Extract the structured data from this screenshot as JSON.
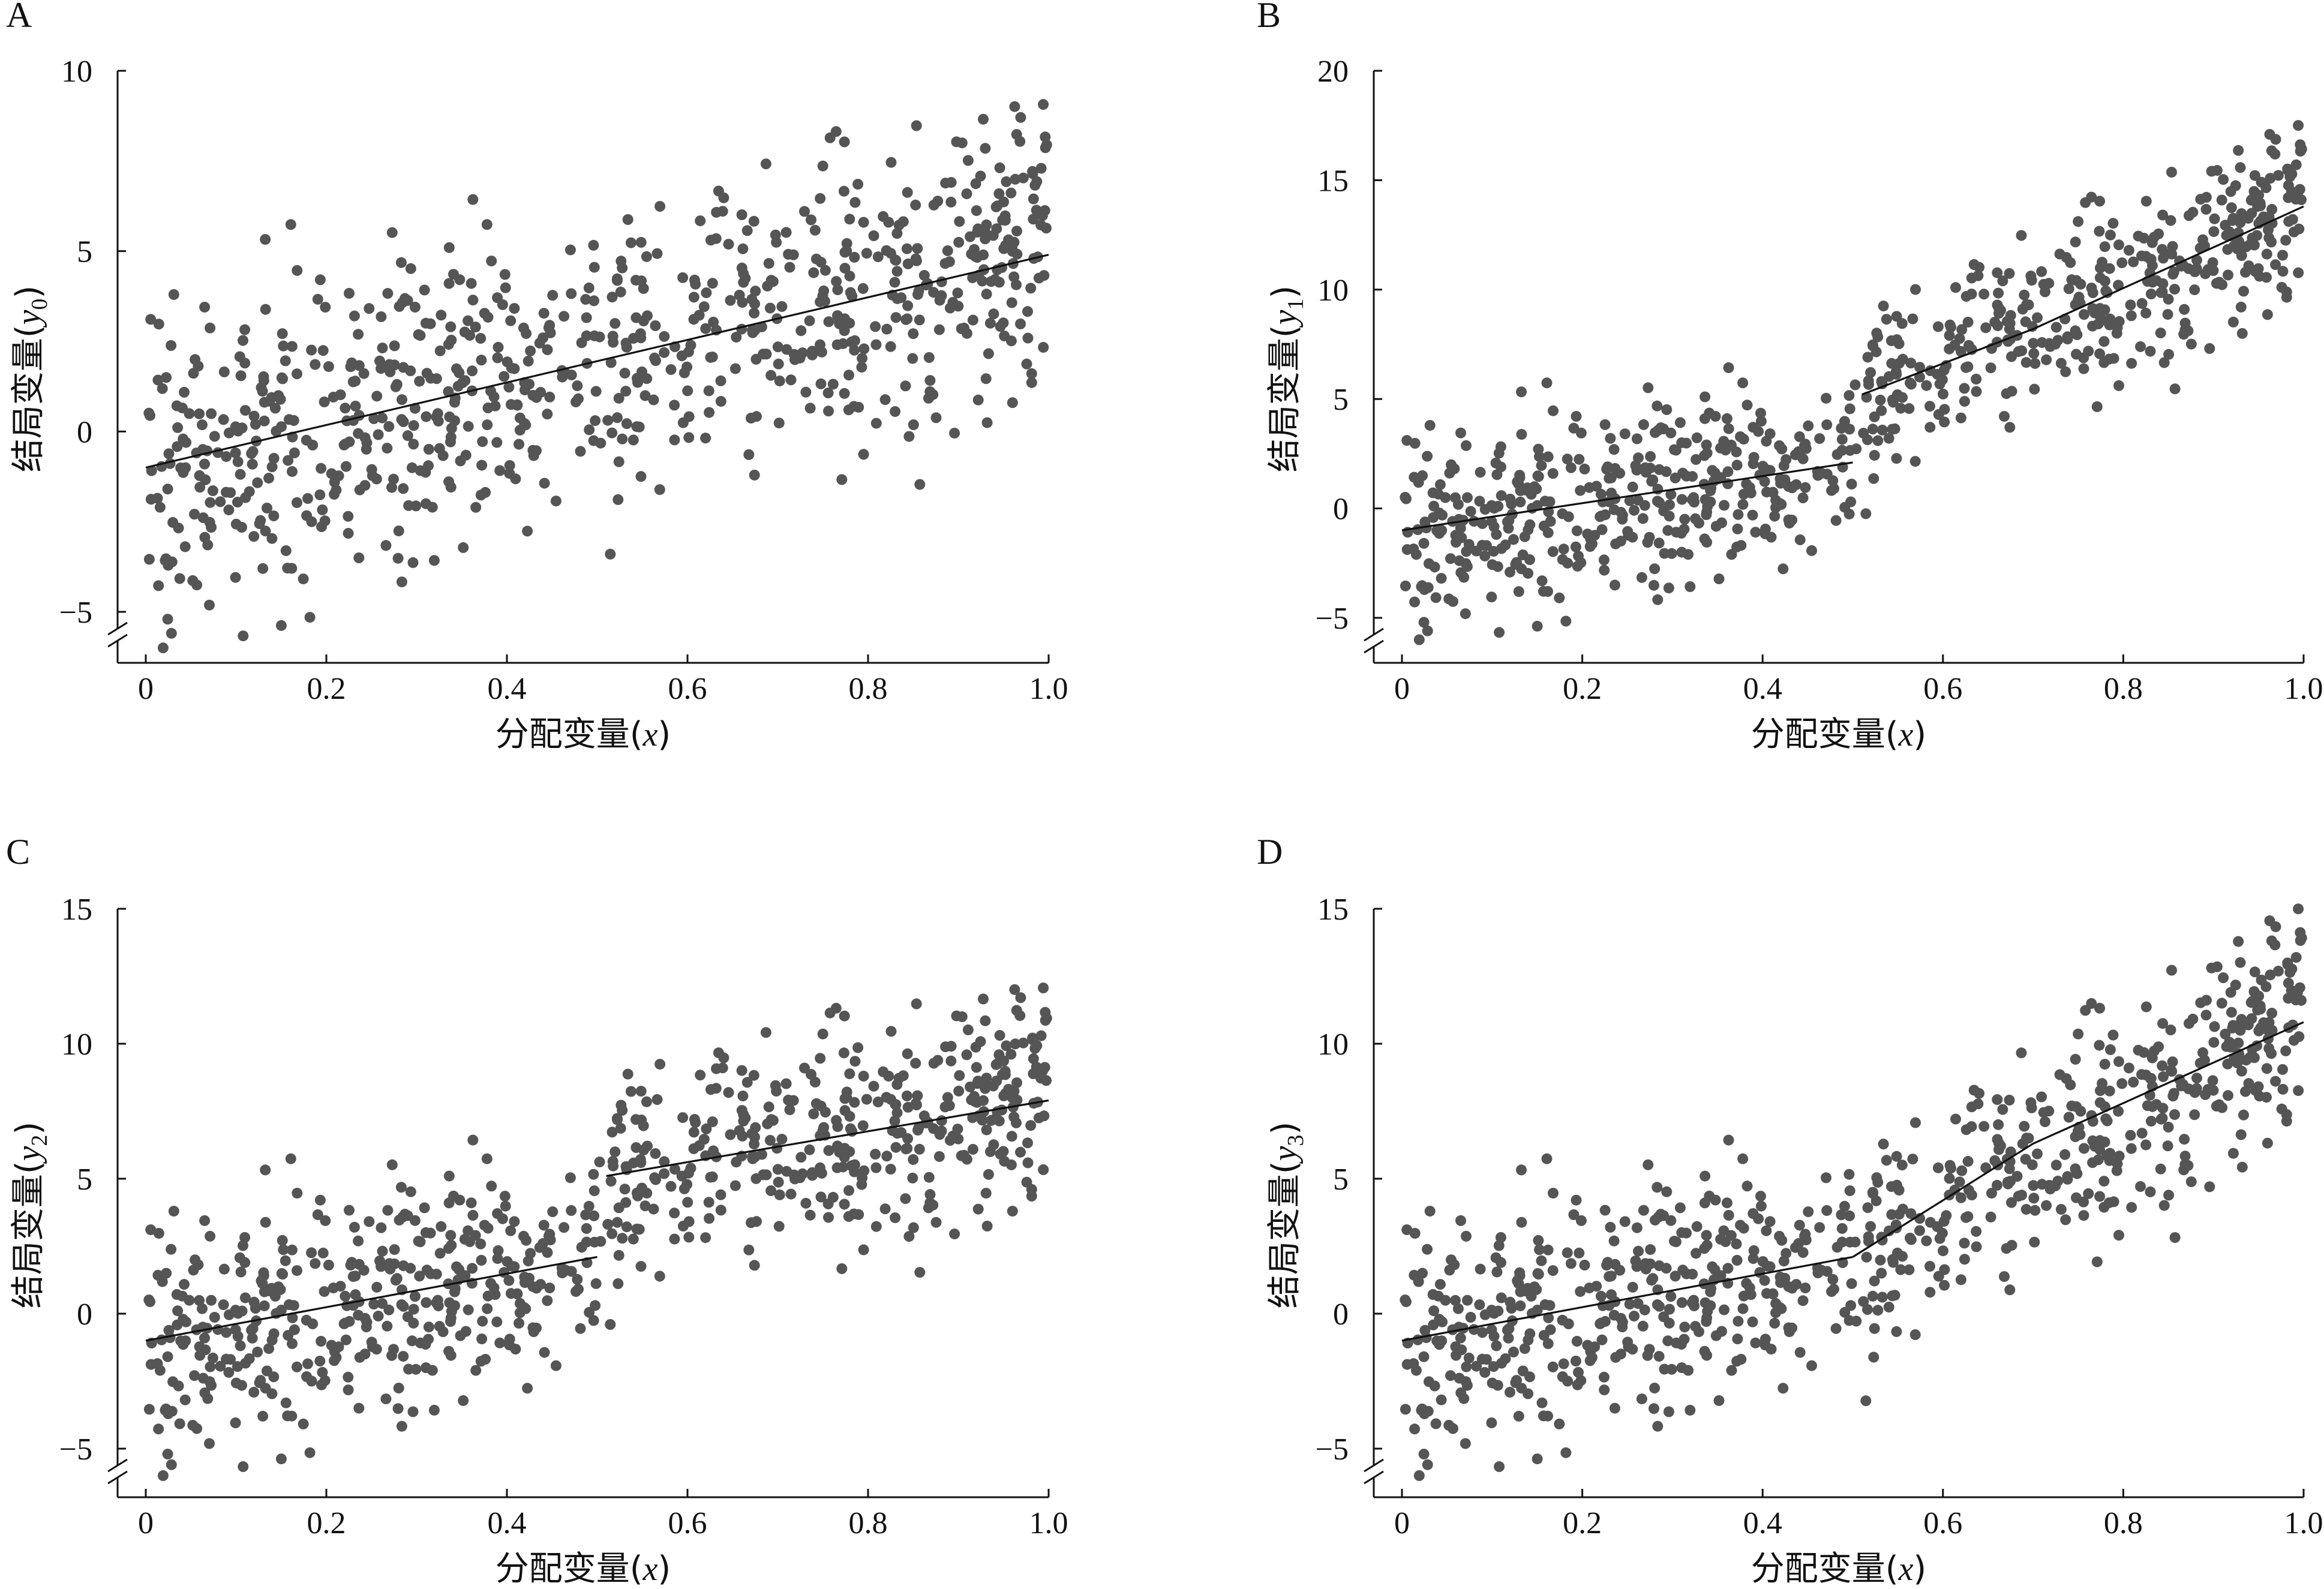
{
  "colors": {
    "points": "#555555",
    "line": "#111111",
    "axis": "#111111"
  },
  "chart_data": [
    {
      "type": "scatter",
      "panel": "A",
      "xlabel_main": "分配变量",
      "xlabel_var": "x",
      "ylabel_main": "结局变量",
      "ylabel_var": "y",
      "ylabel_sub": "0",
      "xlim": [
        0,
        1.0
      ],
      "ylim": [
        -5,
        10
      ],
      "xticks": [
        "0",
        "0.2",
        "0.4",
        "0.6",
        "0.8",
        "1.0"
      ],
      "yticks": [
        "−5",
        "0",
        "5",
        "10"
      ],
      "ytick_values": [
        -5,
        0,
        5,
        10
      ],
      "axis_break": true,
      "model": {
        "cutoff": 0.5,
        "jump": 0,
        "slope_left": 6,
        "slope_right": 6,
        "intercept": -1,
        "noise": 2
      },
      "fit_line": {
        "left": [
          [
            0,
            -1.0
          ],
          [
            1.0,
            4.9
          ]
        ]
      }
    },
    {
      "type": "scatter",
      "panel": "B",
      "xlabel_main": "分配变量",
      "xlabel_var": "x",
      "ylabel_main": "结局变量",
      "ylabel_var": "y",
      "ylabel_sub": "1",
      "xlim": [
        0,
        1.0
      ],
      "ylim": [
        -5,
        20
      ],
      "xticks": [
        "0",
        "0.2",
        "0.4",
        "0.6",
        "0.8",
        "1.0"
      ],
      "yticks": [
        "−5",
        "0",
        "5",
        "10",
        "15",
        "20"
      ],
      "ytick_values": [
        -5,
        0,
        5,
        10,
        15,
        20
      ],
      "axis_break": true,
      "model": {
        "cutoff": 0.5,
        "jump": 3,
        "slope_left": 6,
        "slope_right": 17,
        "intercept": -1,
        "noise": 2
      },
      "fit_line": {
        "left": [
          [
            0,
            -1.0
          ],
          [
            0.5,
            2.1
          ]
        ],
        "right": [
          [
            0.51,
            5.2
          ],
          [
            0.7,
            8.2
          ],
          [
            1.0,
            13.8
          ]
        ]
      }
    },
    {
      "type": "scatter",
      "panel": "C",
      "xlabel_main": "分配变量",
      "xlabel_var": "x",
      "ylabel_main": "结局变量",
      "ylabel_var": "y",
      "ylabel_sub": "2",
      "xlim": [
        0,
        1.0
      ],
      "ylim": [
        -5,
        15
      ],
      "xticks": [
        "0",
        "0.2",
        "0.4",
        "0.6",
        "0.8",
        "1.0"
      ],
      "yticks": [
        "−5",
        "0",
        "5",
        "10",
        "15"
      ],
      "ytick_values": [
        -5,
        0,
        5,
        10,
        15
      ],
      "axis_break": true,
      "model": {
        "cutoff": 0.5,
        "jump": 3,
        "slope_left": 6,
        "slope_right": 6,
        "intercept": -1,
        "noise": 2
      },
      "fit_line": {
        "left": [
          [
            0,
            -1.0
          ],
          [
            0.5,
            2.1
          ]
        ],
        "right": [
          [
            0.51,
            5.1
          ],
          [
            1.0,
            7.9
          ]
        ]
      }
    },
    {
      "type": "scatter",
      "panel": "D",
      "xlabel_main": "分配变量",
      "xlabel_var": "x",
      "ylabel_main": "结局变量",
      "ylabel_var": "y",
      "ylabel_sub": "3",
      "xlim": [
        0,
        1.0
      ],
      "ylim": [
        -5,
        15
      ],
      "xticks": [
        "0",
        "0.2",
        "0.4",
        "0.6",
        "0.8",
        "1.0"
      ],
      "yticks": [
        "−5",
        "0",
        "5",
        "10",
        "15"
      ],
      "ytick_values": [
        -5,
        0,
        5,
        10,
        15
      ],
      "axis_break": true,
      "model": {
        "cutoff": 0.5,
        "jump": 0,
        "slope_left": 6,
        "slope_right": 18,
        "intercept": -1,
        "noise": 2
      },
      "fit_line": {
        "left": [
          [
            0,
            -1.0
          ],
          [
            0.5,
            2.1
          ]
        ],
        "right": [
          [
            0.5,
            2.1
          ],
          [
            0.7,
            6.3
          ],
          [
            1.0,
            10.8
          ]
        ]
      }
    }
  ]
}
